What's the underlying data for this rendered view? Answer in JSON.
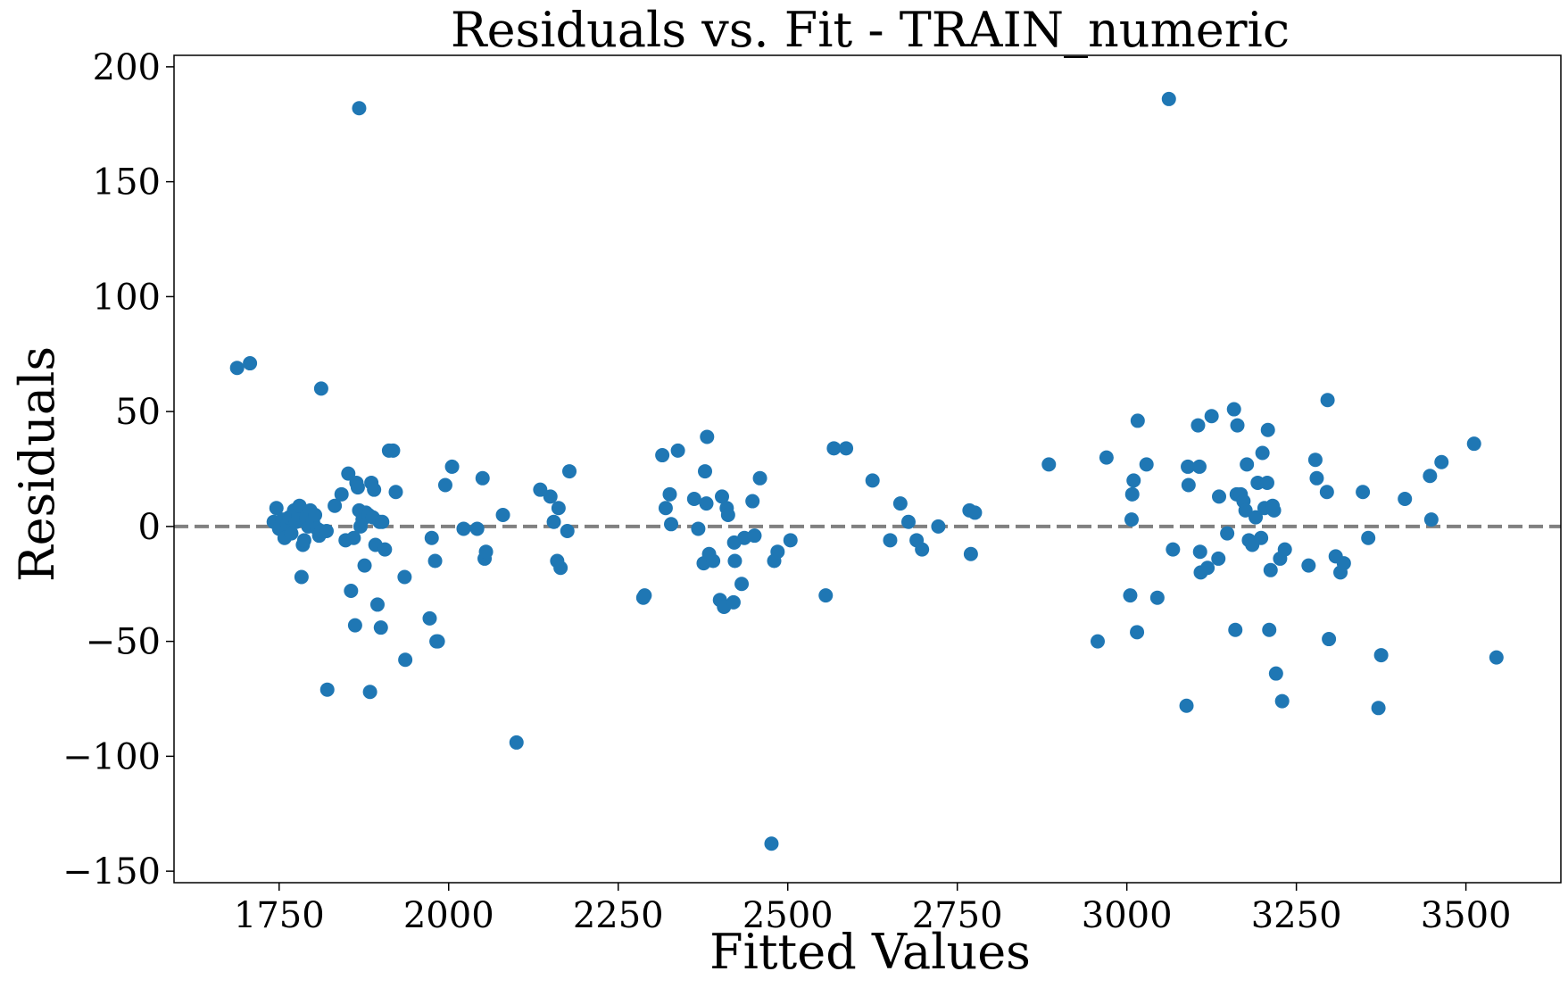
{
  "chart_data": {
    "type": "scatter",
    "title": "Residuals vs. Fit - TRAIN_numeric",
    "xlabel": "Fitted Values",
    "ylabel": "Residuals",
    "xlim": [
      1595,
      3640
    ],
    "ylim": [
      -155,
      205
    ],
    "xticks": [
      1750,
      2000,
      2250,
      2500,
      2750,
      3000,
      3250,
      3500
    ],
    "xtick_labels": [
      "1750",
      "2000",
      "2250",
      "2500",
      "2750",
      "3000",
      "3250",
      "3500"
    ],
    "yticks": [
      -150,
      -100,
      -50,
      0,
      50,
      100,
      150,
      200
    ],
    "ytick_labels": [
      "−150",
      "−100",
      "−50",
      "0",
      "50",
      "100",
      "150",
      "200"
    ],
    "reference_line": {
      "y": 0,
      "style": "dashed",
      "color": "#808080"
    },
    "grid": false,
    "legend": "none",
    "colors": {
      "points": "#1f77b4"
    },
    "points": [
      [
        1688,
        69
      ],
      [
        1707,
        71
      ],
      [
        1812,
        60
      ],
      [
        1868,
        182
      ],
      [
        1821,
        -71
      ],
      [
        1884,
        -72
      ],
      [
        1742,
        2
      ],
      [
        1746,
        8
      ],
      [
        1750,
        -1
      ],
      [
        1755,
        3
      ],
      [
        1758,
        -5
      ],
      [
        1762,
        1
      ],
      [
        1765,
        4
      ],
      [
        1768,
        -3
      ],
      [
        1772,
        7
      ],
      [
        1775,
        2
      ],
      [
        1778,
        5
      ],
      [
        1780,
        9
      ],
      [
        1783,
        -22
      ],
      [
        1785,
        -8
      ],
      [
        1787,
        -6
      ],
      [
        1790,
        4
      ],
      [
        1793,
        0
      ],
      [
        1796,
        7
      ],
      [
        1800,
        2
      ],
      [
        1803,
        5
      ],
      [
        1806,
        -1
      ],
      [
        1809,
        -4
      ],
      [
        1812,
        -2
      ],
      [
        1820,
        -2
      ],
      [
        1832,
        9
      ],
      [
        1842,
        14
      ],
      [
        1848,
        -6
      ],
      [
        1852,
        23
      ],
      [
        1856,
        -28
      ],
      [
        1860,
        -5
      ],
      [
        1862,
        -43
      ],
      [
        1864,
        19
      ],
      [
        1866,
        17
      ],
      [
        1868,
        7
      ],
      [
        1870,
        0
      ],
      [
        1873,
        3
      ],
      [
        1876,
        -17
      ],
      [
        1878,
        6
      ],
      [
        1882,
        5
      ],
      [
        1886,
        19
      ],
      [
        1888,
        4
      ],
      [
        1890,
        16
      ],
      [
        1892,
        -8
      ],
      [
        1895,
        -34
      ],
      [
        1898,
        2
      ],
      [
        1900,
        -44
      ],
      [
        1902,
        2
      ],
      [
        1906,
        -10
      ],
      [
        1912,
        33
      ],
      [
        1918,
        33
      ],
      [
        1922,
        15
      ],
      [
        1935,
        -22
      ],
      [
        1936,
        -58
      ],
      [
        1972,
        -40
      ],
      [
        1975,
        -5
      ],
      [
        1980,
        -15
      ],
      [
        1982,
        -50
      ],
      [
        1984,
        -50
      ],
      [
        1995,
        18
      ],
      [
        2005,
        26
      ],
      [
        2022,
        -1
      ],
      [
        2042,
        -1
      ],
      [
        2050,
        21
      ],
      [
        2053,
        -14
      ],
      [
        2055,
        -11
      ],
      [
        2080,
        5
      ],
      [
        2100,
        -94
      ],
      [
        2135,
        16
      ],
      [
        2150,
        13
      ],
      [
        2155,
        2
      ],
      [
        2160,
        -15
      ],
      [
        2162,
        8
      ],
      [
        2165,
        -18
      ],
      [
        2175,
        -2
      ],
      [
        2178,
        24
      ],
      [
        2287,
        -31
      ],
      [
        2289,
        -30
      ],
      [
        2315,
        31
      ],
      [
        2320,
        8
      ],
      [
        2326,
        14
      ],
      [
        2328,
        1
      ],
      [
        2338,
        33
      ],
      [
        2362,
        12
      ],
      [
        2368,
        -1
      ],
      [
        2376,
        -16
      ],
      [
        2378,
        24
      ],
      [
        2380,
        10
      ],
      [
        2381,
        39
      ],
      [
        2384,
        -12
      ],
      [
        2390,
        -15
      ],
      [
        2400,
        -32
      ],
      [
        2403,
        13
      ],
      [
        2406,
        -35
      ],
      [
        2410,
        8
      ],
      [
        2412,
        5
      ],
      [
        2420,
        -33
      ],
      [
        2421,
        -7
      ],
      [
        2422,
        -15
      ],
      [
        2432,
        -25
      ],
      [
        2436,
        -5
      ],
      [
        2448,
        11
      ],
      [
        2451,
        -4
      ],
      [
        2459,
        21
      ],
      [
        2476,
        -138
      ],
      [
        2480,
        -15
      ],
      [
        2485,
        -11
      ],
      [
        2504,
        -6
      ],
      [
        2556,
        -30
      ],
      [
        2568,
        34
      ],
      [
        2586,
        34
      ],
      [
        2625,
        20
      ],
      [
        2651,
        -6
      ],
      [
        2666,
        10
      ],
      [
        2678,
        2
      ],
      [
        2690,
        -6
      ],
      [
        2698,
        -10
      ],
      [
        2722,
        0
      ],
      [
        2768,
        7
      ],
      [
        2770,
        -12
      ],
      [
        2776,
        6
      ],
      [
        2885,
        27
      ],
      [
        2957,
        -50
      ],
      [
        2970,
        30
      ],
      [
        3005,
        -30
      ],
      [
        3007,
        3
      ],
      [
        3008,
        14
      ],
      [
        3010,
        20
      ],
      [
        3015,
        -46
      ],
      [
        3016,
        46
      ],
      [
        3029,
        27
      ],
      [
        3045,
        -31
      ],
      [
        3062,
        186
      ],
      [
        3068,
        -10
      ],
      [
        3088,
        -78
      ],
      [
        3090,
        26
      ],
      [
        3091,
        18
      ],
      [
        3105,
        44
      ],
      [
        3107,
        26
      ],
      [
        3108,
        -11
      ],
      [
        3109,
        -20
      ],
      [
        3119,
        -18
      ],
      [
        3125,
        48
      ],
      [
        3135,
        -14
      ],
      [
        3136,
        13
      ],
      [
        3148,
        -3
      ],
      [
        3158,
        51
      ],
      [
        3160,
        -45
      ],
      [
        3162,
        14
      ],
      [
        3163,
        44
      ],
      [
        3168,
        14
      ],
      [
        3172,
        11
      ],
      [
        3175,
        7
      ],
      [
        3177,
        27
      ],
      [
        3180,
        -6
      ],
      [
        3185,
        -8
      ],
      [
        3190,
        4
      ],
      [
        3193,
        19
      ],
      [
        3198,
        -5
      ],
      [
        3200,
        32
      ],
      [
        3203,
        8
      ],
      [
        3207,
        19
      ],
      [
        3208,
        42
      ],
      [
        3210,
        -45
      ],
      [
        3212,
        -19
      ],
      [
        3215,
        9
      ],
      [
        3217,
        7
      ],
      [
        3220,
        -64
      ],
      [
        3226,
        -14
      ],
      [
        3229,
        -76
      ],
      [
        3233,
        -10
      ],
      [
        3268,
        -17
      ],
      [
        3278,
        29
      ],
      [
        3280,
        21
      ],
      [
        3295,
        15
      ],
      [
        3296,
        55
      ],
      [
        3298,
        -49
      ],
      [
        3308,
        -13
      ],
      [
        3315,
        -20
      ],
      [
        3320,
        -16
      ],
      [
        3348,
        15
      ],
      [
        3356,
        -5
      ],
      [
        3371,
        -79
      ],
      [
        3375,
        -56
      ],
      [
        3410,
        12
      ],
      [
        3447,
        22
      ],
      [
        3449,
        3
      ],
      [
        3464,
        28
      ],
      [
        3512,
        36
      ],
      [
        3545,
        -57
      ]
    ]
  }
}
